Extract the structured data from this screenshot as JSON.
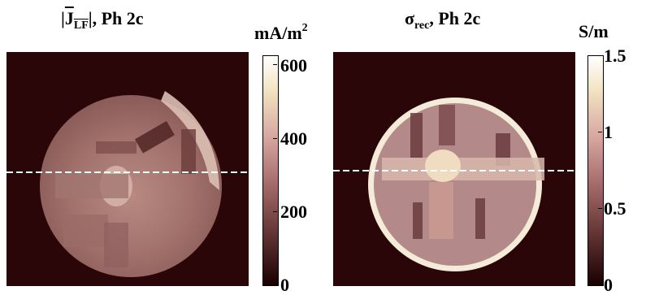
{
  "left": {
    "title_main": "J",
    "title_sub": "LF",
    "title_rest": "|, Ph 2c",
    "unit": "mA/m",
    "unit_exp": "2",
    "ticks": [
      "600",
      "400",
      "200",
      "0"
    ]
  },
  "right": {
    "title_sym": "σ",
    "title_sub": "rec",
    "title_rest": ", Ph 2c",
    "unit": "S/m",
    "ticks": [
      "1.5",
      "1",
      "0.5",
      "0"
    ]
  },
  "colors": {
    "background": "#2a0608",
    "dashed_line": "#ffffff",
    "colormap": [
      "#1a0000",
      "#6b3a3a",
      "#a86d6d",
      "#d7a8a0",
      "#f2e3c2",
      "#ffffff"
    ]
  }
}
